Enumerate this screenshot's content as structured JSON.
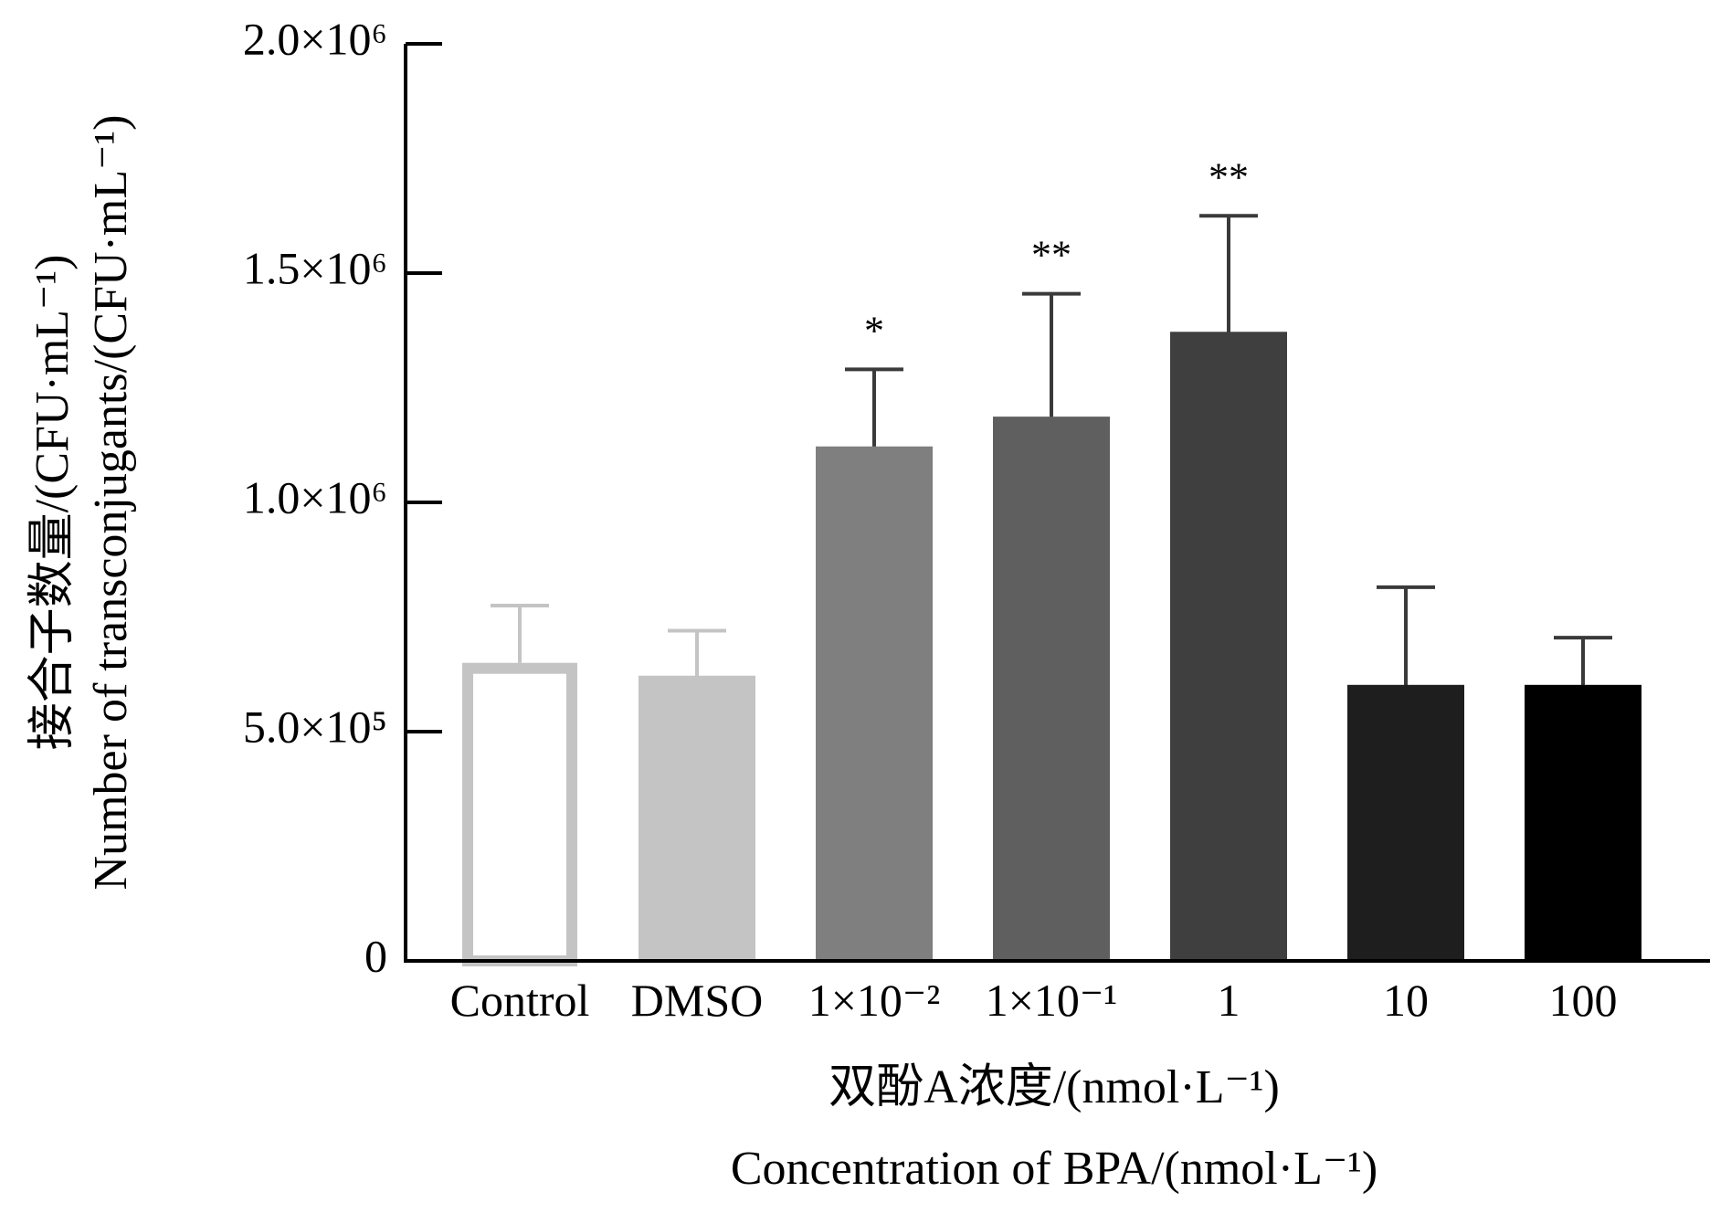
{
  "chart_data": {
    "type": "bar",
    "ylabel_lines": [
      "接合子数量/(CFU·mL⁻¹)",
      "Number of transconjugants/(CFU·mL⁻¹)"
    ],
    "xlabel_lines": [
      "双酚A浓度/(nmol·L⁻¹)",
      "Concentration of BPA/(nmol·L⁻¹)"
    ],
    "categories": [
      "Control",
      "DMSO",
      "1×10⁻²",
      "1×10⁻¹",
      "1",
      "10",
      "100"
    ],
    "values": [
      650000,
      620000,
      1120000,
      1185000,
      1370000,
      600000,
      600000
    ],
    "errors": [
      125000,
      100000,
      170000,
      270000,
      255000,
      215000,
      105000
    ],
    "significance": [
      "",
      "",
      "*",
      "**",
      "**",
      "",
      ""
    ],
    "ylim": [
      0,
      2000000
    ],
    "yticks": [
      0,
      500000,
      1000000,
      1500000,
      2000000
    ],
    "ytick_labels": [
      "0",
      "5.0×10⁵",
      "1.0×10⁶",
      "1.5×10⁶",
      "2.0×10⁶"
    ],
    "colors": {
      "fills": [
        "#ffffff",
        "#c4c4c4",
        "#7f7f7f",
        "#5f5f5f",
        "#3f3f3f",
        "#1e1e1e",
        "#000000"
      ],
      "edges": [
        "#c4c4c4",
        "#c4c4c4",
        "#7f7f7f",
        "#5f5f5f",
        "#3f3f3f",
        "#1e1e1e",
        "#000000"
      ],
      "errorbars": [
        "#c4c4c4",
        "#c4c4c4",
        "#3a3a3a",
        "#3a3a3a",
        "#3a3a3a",
        "#3a3a3a",
        "#3a3a3a"
      ],
      "axis": "#000000"
    }
  }
}
